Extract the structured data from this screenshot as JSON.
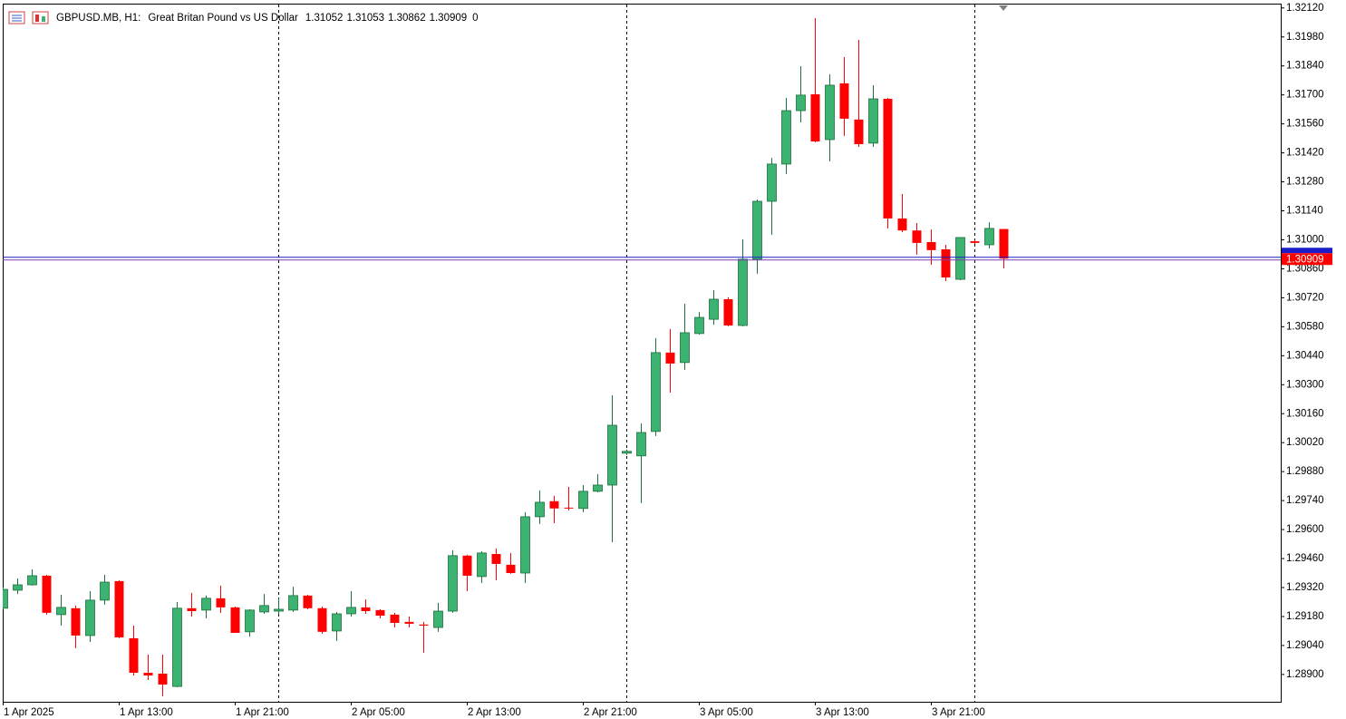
{
  "chart_data": {
    "type": "candlestick",
    "title": "GBPUSD.MB, H1:",
    "subtitle": "Great Britan Pound vs US Dollar",
    "spread": 0,
    "categories": [
      "1 Apr 2025",
      null,
      null,
      null,
      null,
      null,
      null,
      null,
      "1 Apr 13:00",
      null,
      null,
      null,
      null,
      null,
      null,
      null,
      "1 Apr 21:00",
      null,
      null,
      null,
      null,
      null,
      null,
      null,
      "2 Apr 05:00",
      null,
      null,
      null,
      null,
      null,
      null,
      null,
      "2 Apr 13:00",
      null,
      null,
      null,
      null,
      null,
      null,
      null,
      "2 Apr 21:00",
      null,
      null,
      null,
      null,
      null,
      null,
      null,
      "3 Apr 05:00",
      null,
      null,
      null,
      null,
      null,
      null,
      null,
      "3 Apr 13:00",
      null,
      null,
      null,
      null,
      null,
      null,
      null,
      "3 Apr 21:00",
      null,
      null,
      null,
      null,
      null
    ],
    "open": [
      1.2922,
      1.29307,
      1.29333,
      1.29377,
      1.29189,
      1.2922,
      1.29088,
      1.29259,
      1.29351,
      1.29075,
      1.28908,
      1.28904,
      1.28842,
      1.2922,
      1.29211,
      1.29268,
      1.29224,
      1.29106,
      1.29202,
      1.29206,
      1.29211,
      1.29281,
      1.2922,
      1.2911,
      1.29193,
      1.29224,
      1.29211,
      1.29189,
      1.29154,
      1.29141,
      1.29127,
      1.29206,
      1.29474,
      1.29373,
      1.29482,
      1.2943,
      1.2939,
      1.29662,
      1.29737,
      1.29706,
      1.29702,
      1.29785,
      1.29815,
      1.29969,
      1.29956,
      1.30074,
      1.30455,
      1.30407,
      1.30547,
      1.30616,
      1.30713,
      1.30586,
      1.30906,
      1.31186,
      1.31366,
      1.31624,
      1.31703,
      1.31484,
      1.31756,
      1.31581,
      1.31467,
      1.31681,
      1.31103,
      1.31045,
      1.30989,
      1.30954,
      1.30809,
      1.30993,
      1.30976,
      1.31052
    ],
    "high": [
      1.2932,
      1.29364,
      1.29408,
      1.29381,
      1.29285,
      1.29233,
      1.29303,
      1.29381,
      1.29355,
      1.29136,
      1.28996,
      1.28996,
      1.2925,
      1.29294,
      1.29281,
      1.29329,
      1.29228,
      1.29215,
      1.29289,
      1.29268,
      1.29324,
      1.29285,
      1.29228,
      1.29202,
      1.29303,
      1.29263,
      1.29215,
      1.29198,
      1.2918,
      1.29154,
      1.29246,
      1.295,
      1.29478,
      1.29495,
      1.29509,
      1.29487,
      1.29684,
      1.29789,
      1.29763,
      1.29806,
      1.29815,
      1.29868,
      1.30249,
      1.29987,
      1.30113,
      1.30525,
      1.30569,
      1.30691,
      1.30651,
      1.30757,
      1.30722,
      1.31002,
      1.31195,
      1.31396,
      1.31686,
      1.31839,
      1.32071,
      1.318,
      1.31883,
      1.31966,
      1.31747,
      1.31686,
      1.31221,
      1.31081,
      1.3105,
      1.30976,
      1.31011,
      1.30998,
      1.31085,
      1.31053
    ],
    "low": [
      1.29215,
      1.29289,
      1.29329,
      1.29189,
      1.29136,
      1.29027,
      1.29057,
      1.29237,
      1.29075,
      1.28895,
      1.28873,
      1.28795,
      1.28838,
      1.2918,
      1.29171,
      1.29198,
      1.29101,
      1.29083,
      1.29193,
      1.29189,
      1.29202,
      1.29215,
      1.29097,
      1.29062,
      1.2918,
      1.29193,
      1.29171,
      1.29127,
      1.29127,
      1.29005,
      1.29106,
      1.29198,
      1.29303,
      1.29342,
      1.29355,
      1.29386,
      1.29342,
      1.29627,
      1.29631,
      1.29693,
      1.29684,
      1.2978,
      1.29539,
      1.2996,
      1.29728,
      1.30052,
      1.30262,
      1.30372,
      1.30542,
      1.3059,
      1.30582,
      1.30582,
      1.30836,
      1.31024,
      1.31318,
      1.31567,
      1.31471,
      1.31379,
      1.31502,
      1.31449,
      1.31449,
      1.31055,
      1.31037,
      1.30928,
      1.30879,
      1.308,
      1.30805,
      1.3098,
      1.30958,
      1.30862
    ],
    "close": [
      1.29311,
      1.29333,
      1.29377,
      1.29198,
      1.29224,
      1.29088,
      1.29259,
      1.29346,
      1.29079,
      1.28908,
      1.28895,
      1.28851,
      1.2922,
      1.29206,
      1.29268,
      1.29224,
      1.29101,
      1.29211,
      1.29233,
      1.29215,
      1.29281,
      1.2922,
      1.29106,
      1.29193,
      1.29224,
      1.29206,
      1.29184,
      1.29149,
      1.29145,
      1.29136,
      1.29206,
      1.29474,
      1.29377,
      1.29487,
      1.29434,
      1.2939,
      1.29662,
      1.29732,
      1.29702,
      1.29702,
      1.29785,
      1.29815,
      1.30104,
      1.29978,
      1.30069,
      1.30455,
      1.30402,
      1.30551,
      1.30625,
      1.30713,
      1.30586,
      1.30906,
      1.31186,
      1.31366,
      1.31624,
      1.31699,
      1.31475,
      1.31747,
      1.31585,
      1.31462,
      1.31681,
      1.31103,
      1.31045,
      1.30985,
      1.3095,
      1.30818,
      1.31011,
      1.30985,
      1.31055,
      1.30909
    ],
    "up_color": "#3cb371",
    "down_color": "#ff0000",
    "price_line_color": "#1c1cc8",
    "ylim": [
      1.28768,
      1.32141
    ],
    "yticks": [
      {
        "value": 1.3212,
        "label": "1.32120"
      },
      {
        "value": 1.3198,
        "label": "1.31980"
      },
      {
        "value": 1.3184,
        "label": "1.31840"
      },
      {
        "value": 1.317,
        "label": "1.31700"
      },
      {
        "value": 1.3156,
        "label": "1.31560"
      },
      {
        "value": 1.3142,
        "label": "1.31420"
      },
      {
        "value": 1.3128,
        "label": "1.31280"
      },
      {
        "value": 1.3114,
        "label": "1.31140"
      },
      {
        "value": 1.31,
        "label": "1.31000"
      },
      {
        "value": 1.3086,
        "label": "1.30860"
      },
      {
        "value": 1.3072,
        "label": "1.30720"
      },
      {
        "value": 1.3058,
        "label": "1.30580"
      },
      {
        "value": 1.3044,
        "label": "1.30440"
      },
      {
        "value": 1.303,
        "label": "1.30300"
      },
      {
        "value": 1.3016,
        "label": "1.30160"
      },
      {
        "value": 1.3002,
        "label": "1.30020"
      },
      {
        "value": 1.2988,
        "label": "1.29880"
      },
      {
        "value": 1.2974,
        "label": "1.29740"
      },
      {
        "value": 1.296,
        "label": "1.29600"
      },
      {
        "value": 1.2946,
        "label": "1.29460"
      },
      {
        "value": 1.2932,
        "label": "1.29320"
      },
      {
        "value": 1.2918,
        "label": "1.29180"
      },
      {
        "value": 1.2904,
        "label": "1.29040"
      },
      {
        "value": 1.289,
        "label": "1.28900"
      }
    ],
    "grid": false
  }
}
